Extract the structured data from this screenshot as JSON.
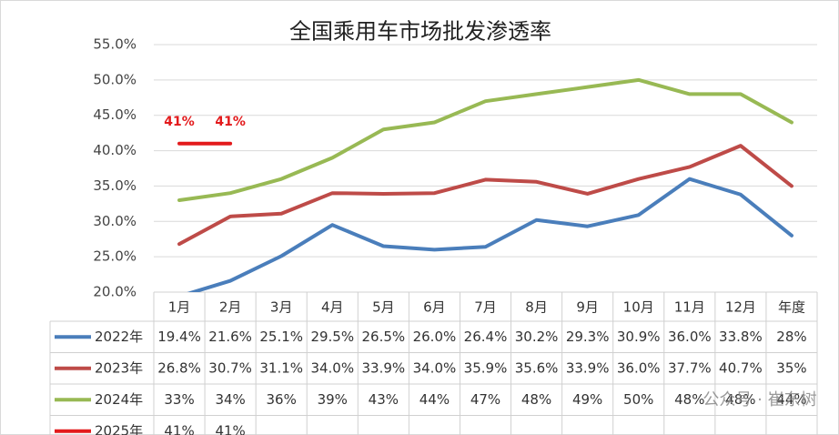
{
  "chart_data": {
    "type": "line",
    "title": "全国乘用车市场批发渗透率",
    "categories": [
      "1月",
      "2月",
      "3月",
      "4月",
      "5月",
      "6月",
      "7月",
      "8月",
      "9月",
      "10月",
      "11月",
      "12月",
      "年度"
    ],
    "ylim": [
      20,
      55
    ],
    "yticks": [
      {
        "value": 20,
        "label": "20.0%"
      },
      {
        "value": 25,
        "label": "25.0%"
      },
      {
        "value": 30,
        "label": "30.0%"
      },
      {
        "value": 35,
        "label": "35.0%"
      },
      {
        "value": 40,
        "label": "40.0%"
      },
      {
        "value": 45,
        "label": "45.0%"
      },
      {
        "value": 50,
        "label": "50.0%"
      },
      {
        "value": 55,
        "label": "55.0%"
      }
    ],
    "grid": true,
    "series": [
      {
        "name": "2022年",
        "color": "#4a7ebb",
        "values": [
          19.4,
          21.6,
          25.1,
          29.5,
          26.5,
          26.0,
          26.4,
          30.2,
          29.3,
          30.9,
          36.0,
          33.8,
          28
        ],
        "value_labels": [
          "19.4%",
          "21.6%",
          "25.1%",
          "29.5%",
          "26.5%",
          "26.0%",
          "26.4%",
          "30.2%",
          "29.3%",
          "30.9%",
          "36.0%",
          "33.8%",
          "28%"
        ]
      },
      {
        "name": "2023年",
        "color": "#be4b48",
        "values": [
          26.8,
          30.7,
          31.1,
          34.0,
          33.9,
          34.0,
          35.9,
          35.6,
          33.9,
          36.0,
          37.7,
          40.7,
          35
        ],
        "value_labels": [
          "26.8%",
          "30.7%",
          "31.1%",
          "34.0%",
          "33.9%",
          "34.0%",
          "35.9%",
          "35.6%",
          "33.9%",
          "36.0%",
          "37.7%",
          "40.7%",
          "35%"
        ]
      },
      {
        "name": "2024年",
        "color": "#98b954",
        "values": [
          33,
          34,
          36,
          39,
          43,
          44,
          47,
          48,
          49,
          50,
          48,
          48,
          44
        ],
        "value_labels": [
          "33%",
          "34%",
          "36%",
          "39%",
          "43%",
          "44%",
          "47%",
          "48%",
          "49%",
          "50%",
          "48%",
          "48%",
          "44%"
        ]
      },
      {
        "name": "2025年",
        "color": "#e31a1c",
        "values": [
          41,
          41,
          null,
          null,
          null,
          null,
          null,
          null,
          null,
          null,
          null,
          null,
          null
        ],
        "value_labels": [
          "41%",
          "41%",
          null,
          null,
          null,
          null,
          null,
          null,
          null,
          null,
          null,
          null,
          null
        ],
        "data_labels": true
      }
    ],
    "watermark": "公众号 · 崔东树"
  }
}
